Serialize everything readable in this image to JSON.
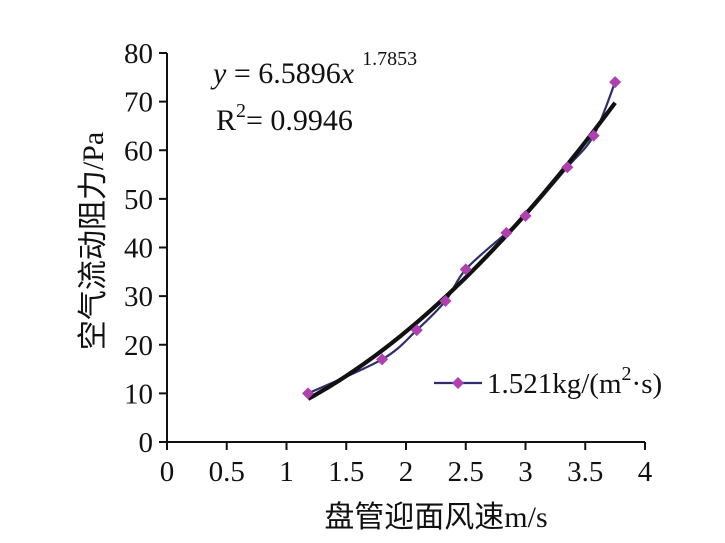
{
  "chart_data": {
    "type": "scatter",
    "title": "",
    "xlabel": "盘管迎面风速m/s",
    "ylabel": "空气流动阻力/Pa",
    "xlim": [
      0,
      4
    ],
    "ylim": [
      0,
      80
    ],
    "x_ticks": [
      "0",
      "0.5",
      "1",
      "1.5",
      "2",
      "2.5",
      "3",
      "3.5",
      "4"
    ],
    "y_ticks": [
      "0",
      "10",
      "20",
      "30",
      "40",
      "50",
      "60",
      "70",
      "80"
    ],
    "grid": false,
    "legend_position": "right",
    "series": [
      {
        "name": "1.521kg/(m²·s)",
        "color": "#2e2e6e",
        "marker_color": "#b040b0",
        "marker": "diamond",
        "x": [
          1.18,
          1.8,
          2.09,
          2.33,
          2.5,
          2.84,
          3.0,
          3.35,
          3.57,
          3.75
        ],
        "y": [
          10,
          17,
          23,
          29,
          35.5,
          43,
          46.5,
          56.5,
          63,
          74
        ]
      }
    ],
    "trendline": {
      "type": "power",
      "a": 6.5896,
      "b": 1.7853,
      "x_range": [
        1.18,
        3.75
      ],
      "color": "#111111"
    },
    "equation": {
      "y_var": "y",
      "eq_text": " = 6.5896",
      "x_var": "x",
      "exponent": "1.7853",
      "r_label": "R",
      "r_sup": "2",
      "r_value": "= 0.9946"
    },
    "legend": {
      "label_main": "1.521kg/(m",
      "label_sup": "2",
      "label_tail": "·s)"
    }
  }
}
